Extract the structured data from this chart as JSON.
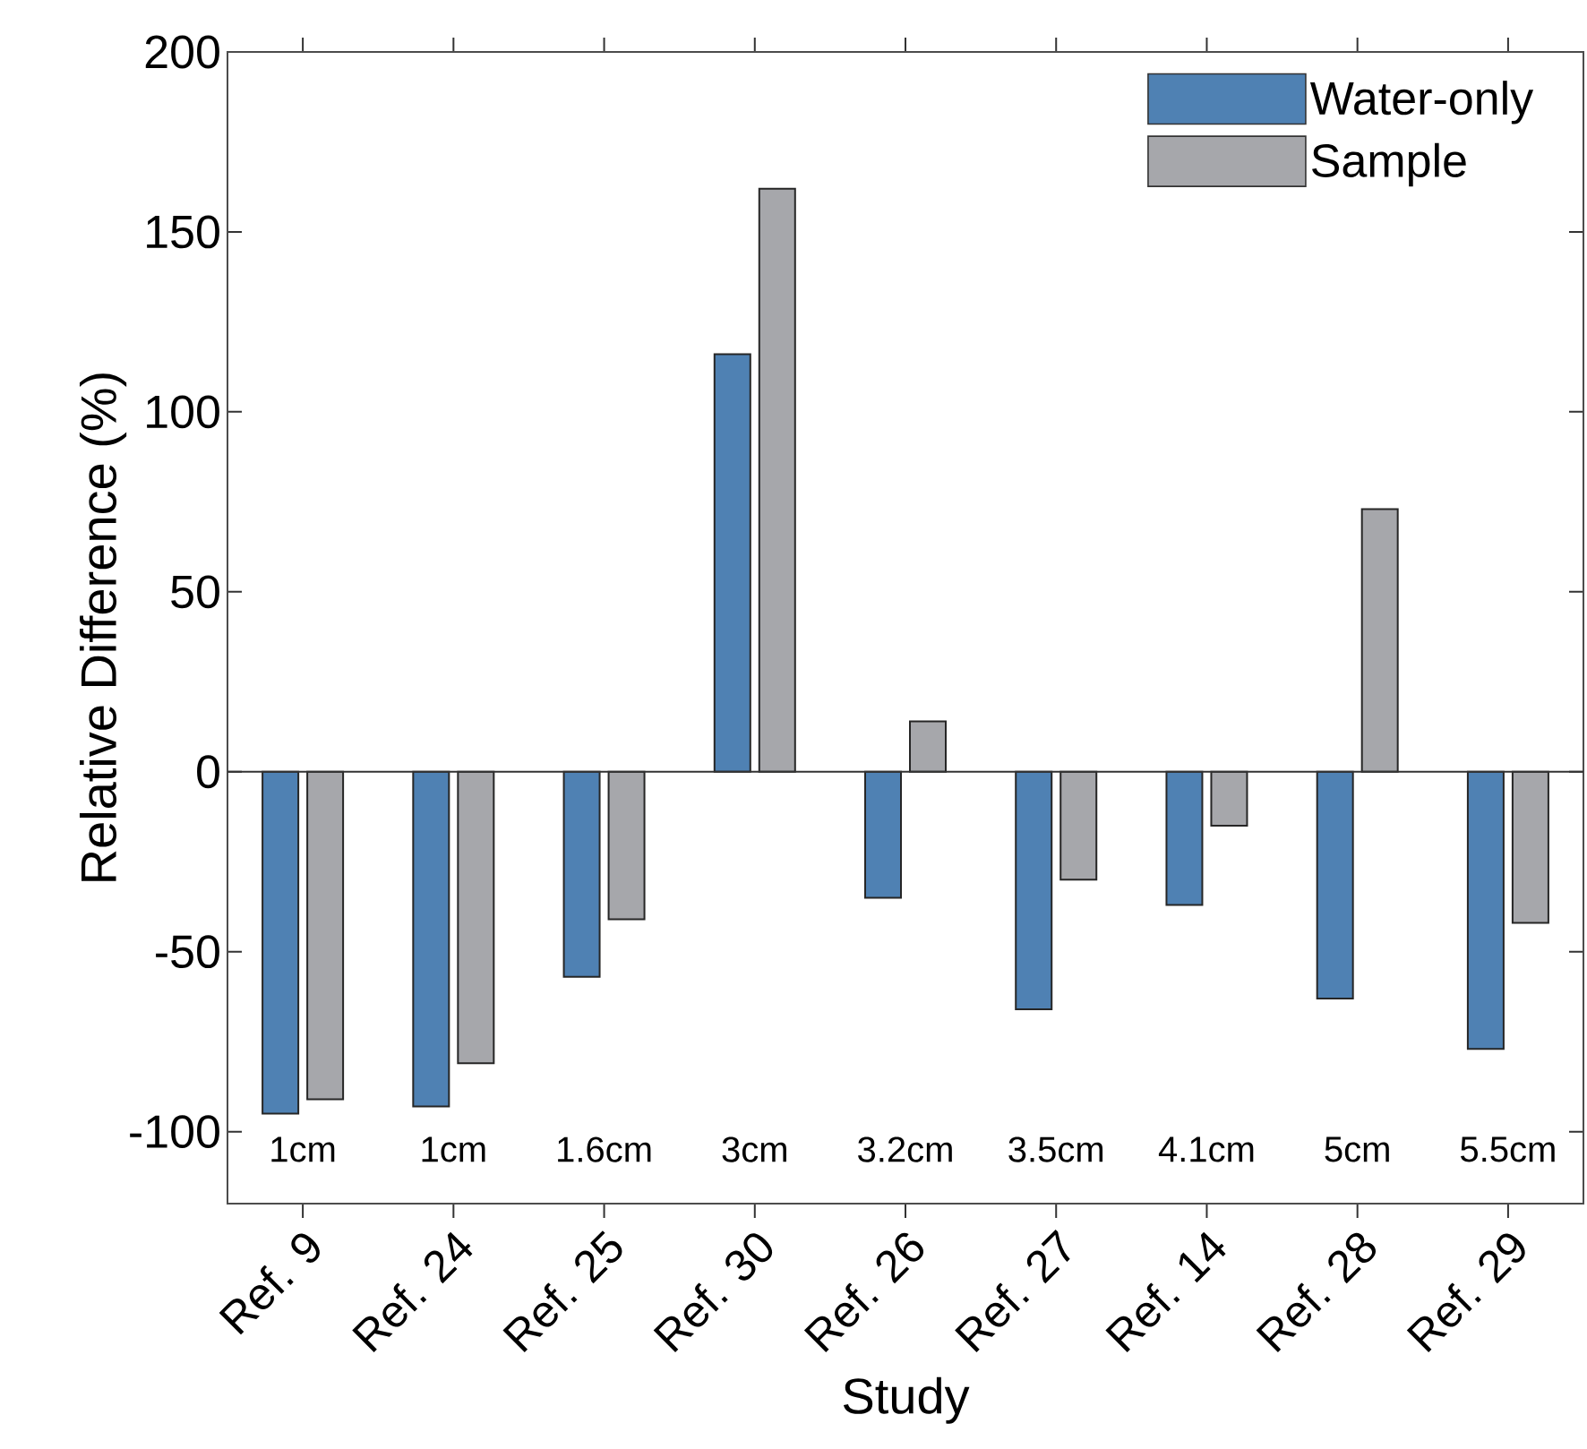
{
  "chart_data": {
    "type": "bar",
    "xlabel": "Study",
    "ylabel": "Relative Difference (%)",
    "categories": [
      "Ref. 9",
      "Ref. 24",
      "Ref. 25",
      "Ref. 30",
      "Ref. 26",
      "Ref. 27",
      "Ref. 14",
      "Ref. 28",
      "Ref. 29"
    ],
    "series": [
      {
        "name": "Water-only",
        "color": "#4f81b3",
        "values": [
          -95,
          -93,
          -57,
          116,
          -35,
          -66,
          -37,
          -63,
          -77
        ]
      },
      {
        "name": "Sample",
        "color": "#a6a7ab",
        "values": [
          -91,
          -81,
          -41,
          162,
          14,
          -30,
          -15,
          73,
          -42
        ]
      }
    ],
    "ylim": [
      -120,
      200
    ],
    "yticks": [
      -100,
      -50,
      0,
      50,
      100,
      150,
      200
    ],
    "legend": "top right",
    "annotations": [
      "1cm",
      "1cm",
      "1.6cm",
      "3cm",
      "3.2cm",
      "3.5cm",
      "4.1cm",
      "5cm",
      "5.5cm"
    ]
  }
}
